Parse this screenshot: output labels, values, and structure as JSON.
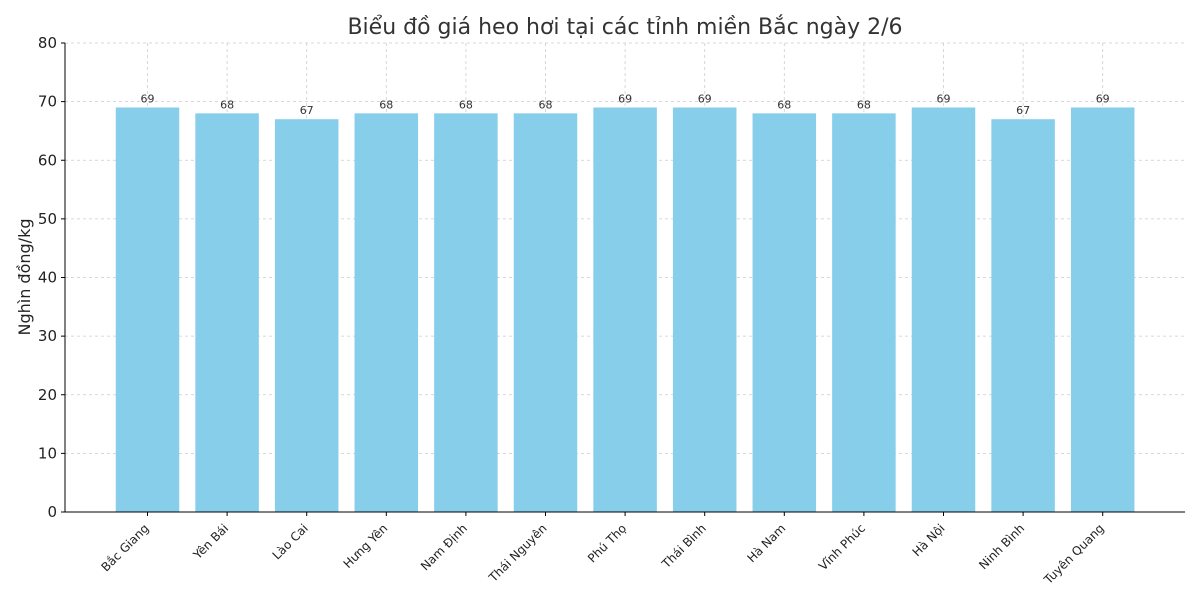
{
  "chart_data": {
    "type": "bar",
    "title": "Biểu đồ giá heo hơi tại các tỉnh miền Bắc ngày 2/6",
    "xlabel": "",
    "ylabel": "Nghìn đồng/kg",
    "ylim": [
      0,
      80
    ],
    "yticks": [
      0,
      10,
      20,
      30,
      40,
      50,
      60,
      70,
      80
    ],
    "grid": true,
    "categories": [
      "Bắc Giang",
      "Yên Bái",
      "Lào Cai",
      "Hưng Yên",
      "Nam Định",
      "Thái Nguyên",
      "Phú Thọ",
      "Thái Bình",
      "Hà Nam",
      "Vĩnh Phúc",
      "Hà Nội",
      "Ninh Bình",
      "Tuyên Quang"
    ],
    "values": [
      69,
      68,
      67,
      68,
      68,
      68,
      69,
      69,
      68,
      68,
      69,
      67,
      69
    ],
    "bar_color": "#87CEEB"
  }
}
